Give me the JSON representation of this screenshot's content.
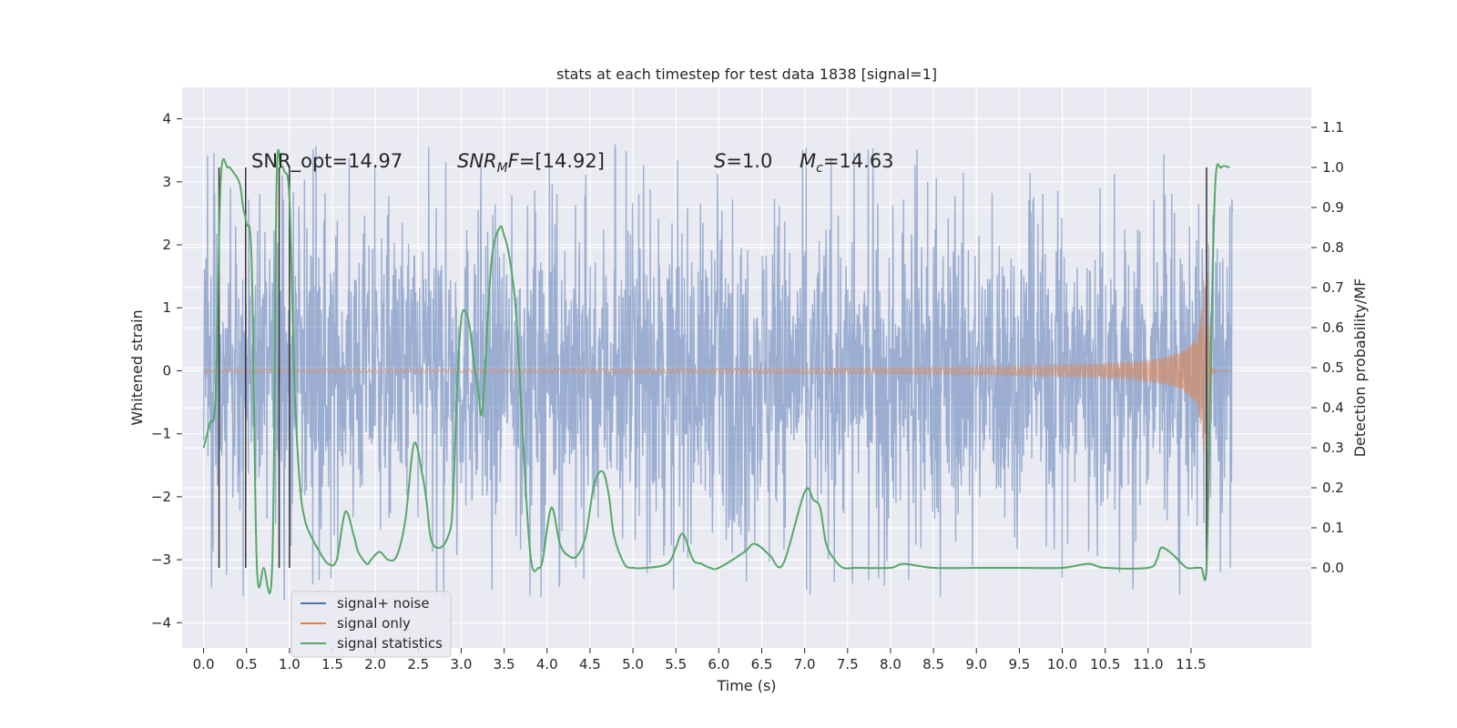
{
  "chart_data": {
    "type": "line",
    "title": "stats at each timestep for test data 1838 [signal=1]",
    "xlabel": "Time (s)",
    "ylabel_left": "Whitened strain",
    "ylabel_right": "Detection probability/MF",
    "xlim": [
      -0.25,
      12.9
    ],
    "ylim_left": [
      -4.4,
      4.5
    ],
    "ylim_right": [
      -0.2,
      1.2
    ],
    "grid": true,
    "legend_position": "lower-left",
    "background_color": "#EAEAF2",
    "x_ticks": [
      "0.0",
      "0.5",
      "1.0",
      "1.5",
      "2.0",
      "2.5",
      "3.0",
      "3.5",
      "4.0",
      "4.5",
      "5.0",
      "5.5",
      "6.0",
      "6.5",
      "7.0",
      "7.5",
      "8.0",
      "8.5",
      "9.0",
      "9.5",
      "10.0",
      "10.5",
      "11.0",
      "11.5"
    ],
    "y_ticks_left": [
      "4",
      "3",
      "2",
      "1",
      "0",
      "−1",
      "−2",
      "−3",
      "−4"
    ],
    "y_ticks_right": [
      "1.1",
      "1.0",
      "0.9",
      "0.8",
      "0.7",
      "0.6",
      "0.5",
      "0.4",
      "0.3",
      "0.2",
      "0.1",
      "0.0"
    ],
    "annotations": {
      "snr_opt": "SNR_opt=14.97",
      "snr_mf_sym": "SNR",
      "snr_mf_sub": "M",
      "snr_mf_sym2": "F",
      "snr_mf_val": "=[14.92]",
      "s_sym": "S",
      "s_val": "=1.0",
      "mc_sym": "M",
      "mc_sub": "c",
      "mc_val": "=14.63"
    },
    "series": [
      {
        "name": "signal+ noise",
        "color": "#4C72B0",
        "description_kind": "whitened strain noise",
        "x_range": [
          0.0,
          11.98
        ],
        "typical_amplitude": 2.0,
        "peak_range": [
          -3.9,
          4.1
        ]
      },
      {
        "name": "signal only",
        "color": "#DD8452",
        "description_kind": "chirp waveform",
        "x_range": [
          0.0,
          11.98
        ],
        "merger_time": 11.68,
        "peak_amplitude": 3.3
      },
      {
        "name": "signal statistics",
        "color": "#55A868",
        "axis": "right",
        "x": [
          0.0,
          0.07,
          0.14,
          0.2,
          0.28,
          0.34,
          0.42,
          0.46,
          0.5,
          0.56,
          0.62,
          0.7,
          0.8,
          0.85,
          0.9,
          0.94,
          1.0,
          1.06,
          1.12,
          1.18,
          1.25,
          1.35,
          1.45,
          1.55,
          1.65,
          1.75,
          1.8,
          1.9,
          1.95,
          2.05,
          2.15,
          2.25,
          2.35,
          2.45,
          2.55,
          2.6,
          2.65,
          2.75,
          2.85,
          2.9,
          2.95,
          3.0,
          3.05,
          3.1,
          3.15,
          3.2,
          3.25,
          3.35,
          3.45,
          3.5,
          3.55,
          3.6,
          3.65,
          3.75,
          3.82,
          3.9,
          3.95,
          4.05,
          4.15,
          4.25,
          4.35,
          4.45,
          4.55,
          4.65,
          4.72,
          4.78,
          4.9,
          5.0,
          5.15,
          5.4,
          5.5,
          5.55,
          5.6,
          5.7,
          5.8,
          5.9,
          6.0,
          6.3,
          6.4,
          6.5,
          6.6,
          6.75,
          7.0,
          7.1,
          7.18,
          7.25,
          7.35,
          7.45,
          7.6,
          8.0,
          8.15,
          8.5,
          9.0,
          9.2,
          9.5,
          10.0,
          10.3,
          10.5,
          11.0,
          11.1,
          11.15,
          11.25,
          11.35,
          11.45,
          11.55,
          11.62,
          11.68,
          11.72,
          11.78,
          11.85,
          11.95
        ],
        "values": [
          0.3,
          0.36,
          0.43,
          0.97,
          1.0,
          0.99,
          0.96,
          0.9,
          0.86,
          0.76,
          0.01,
          0.0,
          0.01,
          0.96,
          1.0,
          0.99,
          0.92,
          0.45,
          0.21,
          0.12,
          0.08,
          0.04,
          0.01,
          0.02,
          0.14,
          0.08,
          0.04,
          0.01,
          0.02,
          0.04,
          0.02,
          0.03,
          0.12,
          0.31,
          0.23,
          0.16,
          0.07,
          0.05,
          0.08,
          0.15,
          0.44,
          0.62,
          0.64,
          0.6,
          0.51,
          0.44,
          0.4,
          0.76,
          0.85,
          0.83,
          0.79,
          0.72,
          0.6,
          0.2,
          0.01,
          0.0,
          0.02,
          0.15,
          0.06,
          0.03,
          0.03,
          0.08,
          0.21,
          0.24,
          0.18,
          0.08,
          0.01,
          0.0,
          0.0,
          0.01,
          0.05,
          0.08,
          0.08,
          0.02,
          0.01,
          0.0,
          0.0,
          0.04,
          0.06,
          0.05,
          0.03,
          0.01,
          0.19,
          0.17,
          0.15,
          0.06,
          0.02,
          0.0,
          0.0,
          0.0,
          0.01,
          0.0,
          0.0,
          0.0,
          0.0,
          0.0,
          0.01,
          0.0,
          0.0,
          0.02,
          0.05,
          0.04,
          0.02,
          0.0,
          0.0,
          0.0,
          0.0,
          0.42,
          0.95,
          1.0,
          1.0
        ]
      }
    ],
    "vertical_markers": {
      "color": "#333333",
      "x": [
        0.18,
        0.49,
        0.88,
        1.0,
        11.68
      ],
      "y_range_right": [
        0.0,
        1.0
      ]
    }
  }
}
